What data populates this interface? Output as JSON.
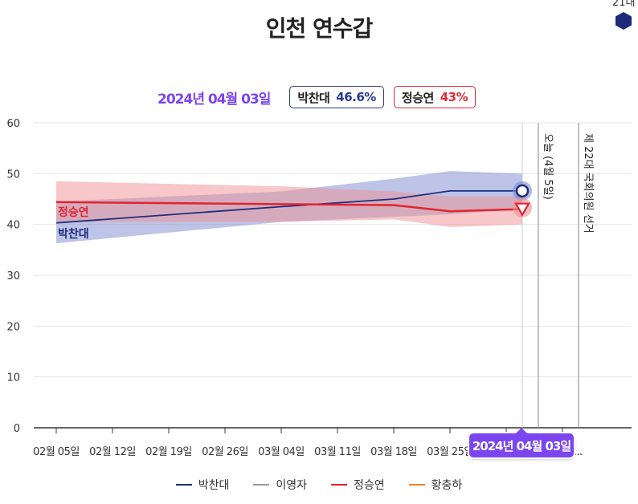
{
  "header": {
    "title": "인천 연수갑",
    "corner_text": "21대",
    "corner_icon": "hexagon-icon",
    "corner_color": "#1c2a7a"
  },
  "info": {
    "date": "2024년 04월 03일",
    "candidates": [
      {
        "name": "박찬대",
        "value": "46.6%",
        "color": "#2a3990"
      },
      {
        "name": "정승연",
        "value": "43%",
        "color": "#e02b3a"
      }
    ]
  },
  "tooltip": {
    "date": "2024년 04월 03일"
  },
  "chart_data": {
    "type": "line",
    "ylim": [
      0,
      60
    ],
    "yticks": [
      "0",
      "10",
      "20",
      "30",
      "40",
      "50",
      "60"
    ],
    "xticks": [
      "02월 05일",
      "02월 12일",
      "02월 19일",
      "02월 26일",
      "03월 04일",
      "03월 11일",
      "03월 18일",
      "03월 25일",
      "04월 01일",
      "04월 1..."
    ],
    "grid": true,
    "series": [
      {
        "name": "박찬대",
        "color": "#1e2d7d",
        "band_color": "#7b8ad0",
        "x": [
          "02월 05일",
          "03월 04일",
          "03월 18일",
          "03월 25일",
          "04월 03일"
        ],
        "y": [
          40.3,
          43.5,
          45.0,
          46.6,
          46.6
        ],
        "lower": [
          36.3,
          40.5,
          41.5,
          42.0,
          43.0
        ],
        "upper": [
          44.5,
          46.5,
          49.0,
          50.5,
          50.0
        ],
        "label": "박찬대",
        "marker": "circle"
      },
      {
        "name": "정승연",
        "color": "#e0242f",
        "band_color": "#ef8f94",
        "x": [
          "02월 05일",
          "03월 04일",
          "03월 18일",
          "03월 25일",
          "04월 03일"
        ],
        "y": [
          44.4,
          44.0,
          43.8,
          42.6,
          43.0
        ],
        "lower": [
          40.5,
          40.5,
          41.0,
          39.5,
          40.0
        ],
        "upper": [
          48.5,
          47.5,
          46.5,
          45.5,
          45.5
        ],
        "label": "정승연",
        "marker": "triangle-down"
      }
    ],
    "annotations": [
      {
        "text": "오늘 (4월 5일)",
        "x": "04월 05일"
      },
      {
        "text": "제 22대 국회의원 선거",
        "x": "04월 10일"
      }
    ],
    "current_marker": "04월 03일"
  },
  "legend": [
    {
      "label": "박찬대",
      "color": "#1e2d7d"
    },
    {
      "label": "이영자",
      "color": "#999999"
    },
    {
      "label": "정승연",
      "color": "#e0242f"
    },
    {
      "label": "황충하",
      "color": "#f07f2a"
    }
  ]
}
